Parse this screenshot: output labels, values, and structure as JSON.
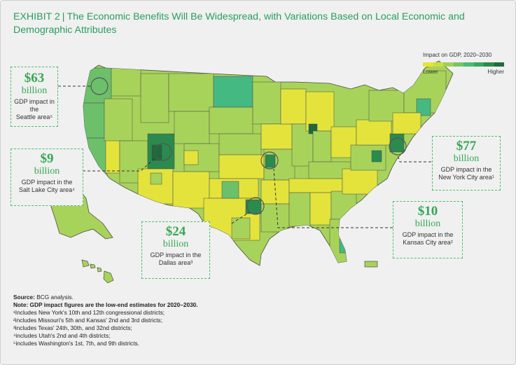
{
  "header": {
    "exhibit": "EXHIBIT 2",
    "separator": "|",
    "title_line1": "The Economic Benefits Will Be Widespread, with Variations Based on Local Economic and",
    "title_line2": "Demographic Attributes"
  },
  "legend": {
    "title": "Impact on GDP, 2020–2030",
    "low_label": "Lower",
    "high_label": "Higher",
    "colors": [
      "#e6e532",
      "#c9de45",
      "#9fd15a",
      "#74c465",
      "#4dba73",
      "#35a85e",
      "#2c8a4c",
      "#1f6b3a"
    ]
  },
  "callouts": [
    {
      "id": "seattle",
      "value": "$63",
      "unit": "billion",
      "desc_line1": "GDP impact in the",
      "desc_line2": "Seattle area⁵"
    },
    {
      "id": "salt-lake",
      "value": "$9",
      "unit": "billion",
      "desc_line1": "GDP impact in the",
      "desc_line2": "Salt Lake City area⁴"
    },
    {
      "id": "dallas",
      "value": "$24",
      "unit": "billion",
      "desc_line1": "GDP impact in the",
      "desc_line2": "Dallas area³"
    },
    {
      "id": "kansas-city",
      "value": "$10",
      "unit": "billion",
      "desc_line1": "GDP impact in the",
      "desc_line2": "Kansas City area²"
    },
    {
      "id": "new-york",
      "value": "$77",
      "unit": "billion",
      "desc_line1": "GDP impact in the",
      "desc_line2": "New York City area¹"
    }
  ],
  "notes": {
    "source_label": "Source:",
    "source_text": "BCG analysis.",
    "note_label": "Note:",
    "note_text": "GDP impact figures are the low-end estimates for 2020–2030.",
    "footnotes": [
      "¹Includes New York's 10th and 12th congressional districts;",
      "²includes Missouri's 5th and Kansas' 2nd and 3rd districts;",
      "³includes Texas' 24th, 30th, and 32nd districts;",
      "⁴includes Utah's 2nd and 4th districts;",
      "⁵includes Washington's 1st, 7th, and 9th districts."
    ]
  },
  "map_colors": {
    "yellow": "#e3e33c",
    "light": "#a8d35a",
    "mid": "#6cc06a",
    "teal": "#45b982",
    "dark": "#2b8a4e",
    "darkest": "#1e6a3b",
    "border": "#4a4a4a",
    "callout_green": "#34a853"
  }
}
